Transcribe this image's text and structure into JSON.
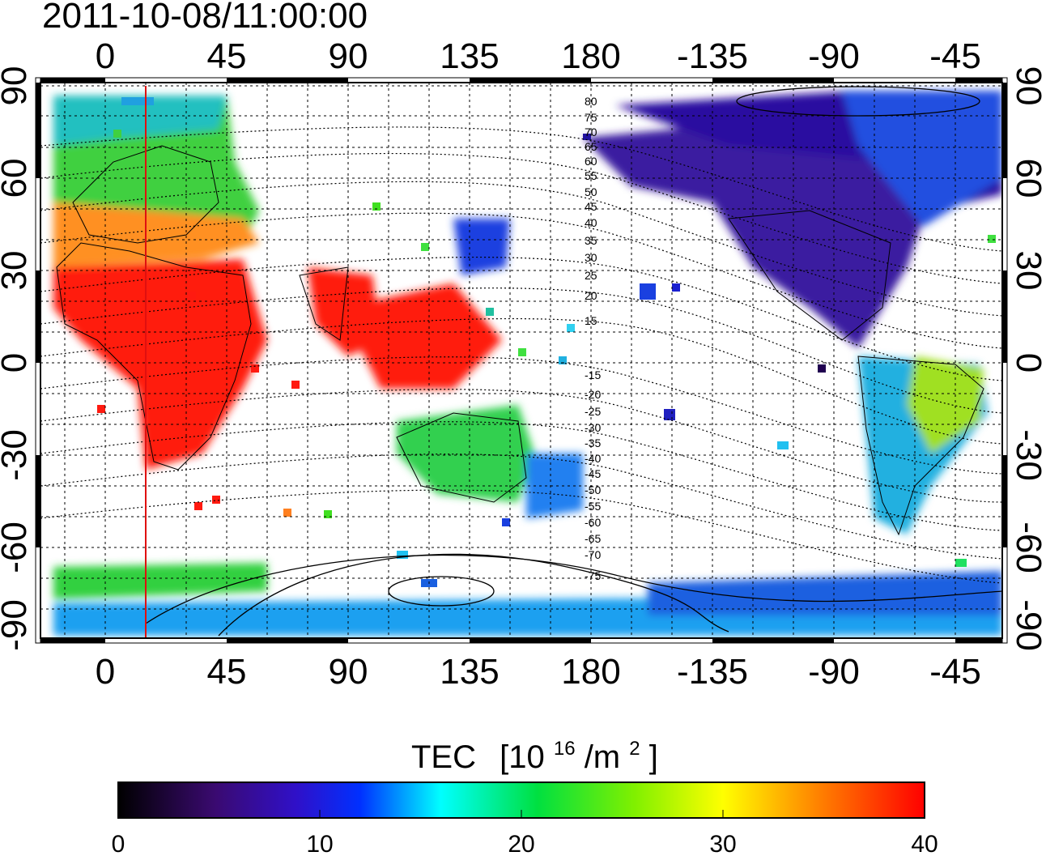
{
  "title": "2011-10-08/11:00:00",
  "map": {
    "lon_ticks_top": [
      "0",
      "45",
      "90",
      "135",
      "180",
      "-135",
      "-90",
      "-45"
    ],
    "lon_ticks_bottom": [
      "0",
      "45",
      "90",
      "135",
      "180",
      "-135",
      "-90",
      "-45"
    ],
    "lat_ticks_left": [
      "90",
      "60",
      "30",
      "0",
      "-30",
      "-60",
      "-90"
    ],
    "lat_ticks_right": [
      "90",
      "60",
      "30",
      "0",
      "-30",
      "-60",
      "-90"
    ],
    "contour_labels": [
      "80",
      "75",
      "70",
      "65",
      "60",
      "55",
      "50",
      "45",
      "40",
      "35",
      "30",
      "25",
      "20",
      "15",
      "-15",
      "-20",
      "-25",
      "-30",
      "-35",
      "-40",
      "-45",
      "-50",
      "-55",
      "-60",
      "-65",
      "-70",
      "-75"
    ],
    "marker_line_color": "#e01010"
  },
  "colorbar": {
    "title": "TEC",
    "unit_prefix": "[10",
    "unit_exp": "16",
    "unit_mid": "/m",
    "unit_exp2": "2",
    "unit_suffix": "]",
    "ticks": [
      "0",
      "10",
      "20",
      "30",
      "40"
    ],
    "min": 0,
    "max": 40,
    "stops": [
      "#000000",
      "#4b0082",
      "#1010e0",
      "#00ffff",
      "#00e000",
      "#ffff00",
      "#ff8000",
      "#ff0000"
    ]
  }
}
